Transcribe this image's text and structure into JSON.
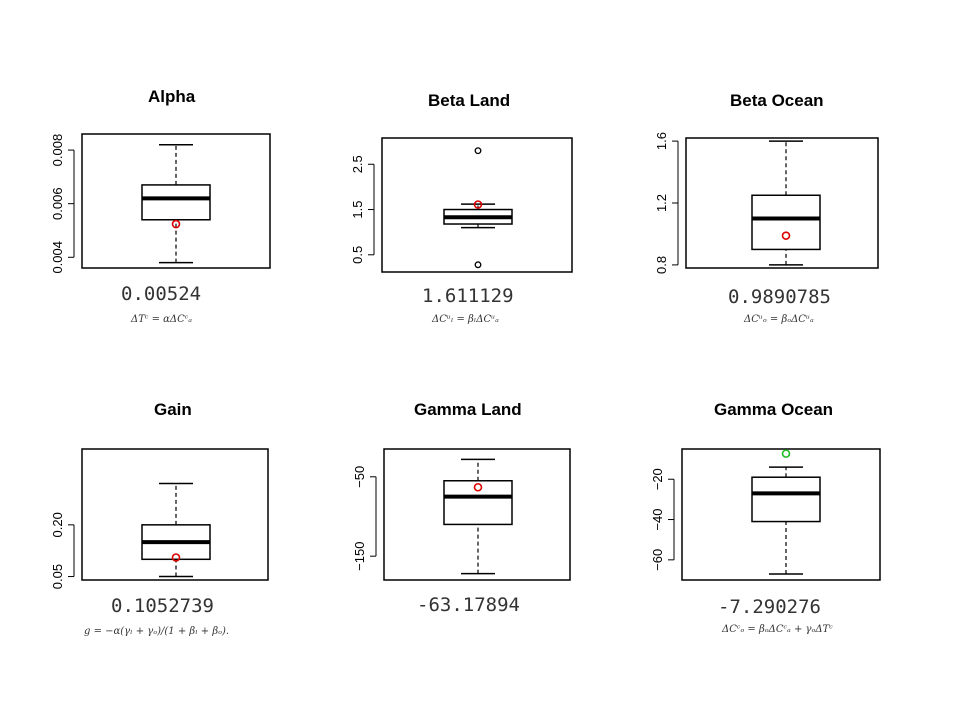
{
  "chart_data": [
    {
      "type": "boxplot",
      "title": "Alpha",
      "ylim": [
        0.0036,
        0.0086
      ],
      "yticks": [
        0.004,
        0.006,
        0.008
      ],
      "tick_labels": [
        "0.004",
        "0.006",
        "0.008"
      ],
      "box": {
        "min": 0.0038,
        "q1": 0.0054,
        "median": 0.0062,
        "q3": 0.0067,
        "max": 0.0082
      },
      "outliers": [],
      "marker": {
        "value": 0.00524,
        "color": "#dd0000"
      },
      "value_label": "0.00524",
      "formula": "ΔTᶜ = αΔCᶜₐ"
    },
    {
      "type": "boxplot",
      "title": "Beta Land",
      "ylim": [
        0.12,
        3.08
      ],
      "yticks": [
        0.5,
        1.5,
        2.5
      ],
      "tick_labels": [
        "0.5",
        "1.5",
        "2.5"
      ],
      "box": {
        "min": 1.1,
        "q1": 1.18,
        "median": 1.33,
        "q3": 1.5,
        "max": 1.62
      },
      "outliers": [
        0.28,
        2.8
      ],
      "marker": {
        "value": 1.611129,
        "color": "#dd0000"
      },
      "value_label": "1.611129",
      "formula": "ΔCᵘₗ = βₗΔCᵘₐ"
    },
    {
      "type": "boxplot",
      "title": "Beta Ocean",
      "ylim": [
        0.78,
        1.62
      ],
      "yticks": [
        0.8,
        1.2,
        1.6
      ],
      "tick_labels": [
        "0.8",
        "1.2",
        "1.6"
      ],
      "box": {
        "min": 0.8,
        "q1": 0.9,
        "median": 1.1,
        "q3": 1.25,
        "max": 1.6
      },
      "outliers": [],
      "marker": {
        "value": 0.9890785,
        "color": "#dd0000"
      },
      "value_label": "0.9890785",
      "formula": "ΔCᵘₒ = βₒΔCᵘₐ"
    },
    {
      "type": "boxplot",
      "title": "Gain",
      "ylim": [
        0.04,
        0.42
      ],
      "yticks": [
        0.05,
        0.2
      ],
      "tick_labels": [
        "0.05",
        "0.20"
      ],
      "box": {
        "min": 0.05,
        "q1": 0.1,
        "median": 0.15,
        "q3": 0.2,
        "max": 0.32
      },
      "outliers": [],
      "marker": {
        "value": 0.1052739,
        "color": "#dd0000"
      },
      "value_label": "0.1052739",
      "formula": "g = −α(γₗ + γₒ)/(1 + βₗ + βₒ)."
    },
    {
      "type": "boxplot",
      "title": "Gamma Land",
      "ylim": [
        -180,
        -15
      ],
      "yticks": [
        -150,
        -50
      ],
      "tick_labels": [
        "−150",
        "−50"
      ],
      "box": {
        "min": -172,
        "q1": -110,
        "median": -75,
        "q3": -55,
        "max": -28
      },
      "outliers": [],
      "marker": {
        "value": -63.17894,
        "color": "#dd0000"
      },
      "value_label": "-63.17894",
      "formula": ""
    },
    {
      "type": "boxplot",
      "title": "Gamma Ocean",
      "ylim": [
        -70,
        -5
      ],
      "yticks": [
        -60,
        -40,
        -20
      ],
      "tick_labels": [
        "−60",
        "−40",
        "−20"
      ],
      "box": {
        "min": -67,
        "q1": -41,
        "median": -27,
        "q3": -19,
        "max": -14
      },
      "outliers": [],
      "marker": {
        "value": -7.290276,
        "color": "#22bb22"
      },
      "value_label": "-7.290276",
      "formula": "ΔCᶜₒ = βₒΔCᶜₐ + γₒΔTᶜ"
    }
  ]
}
